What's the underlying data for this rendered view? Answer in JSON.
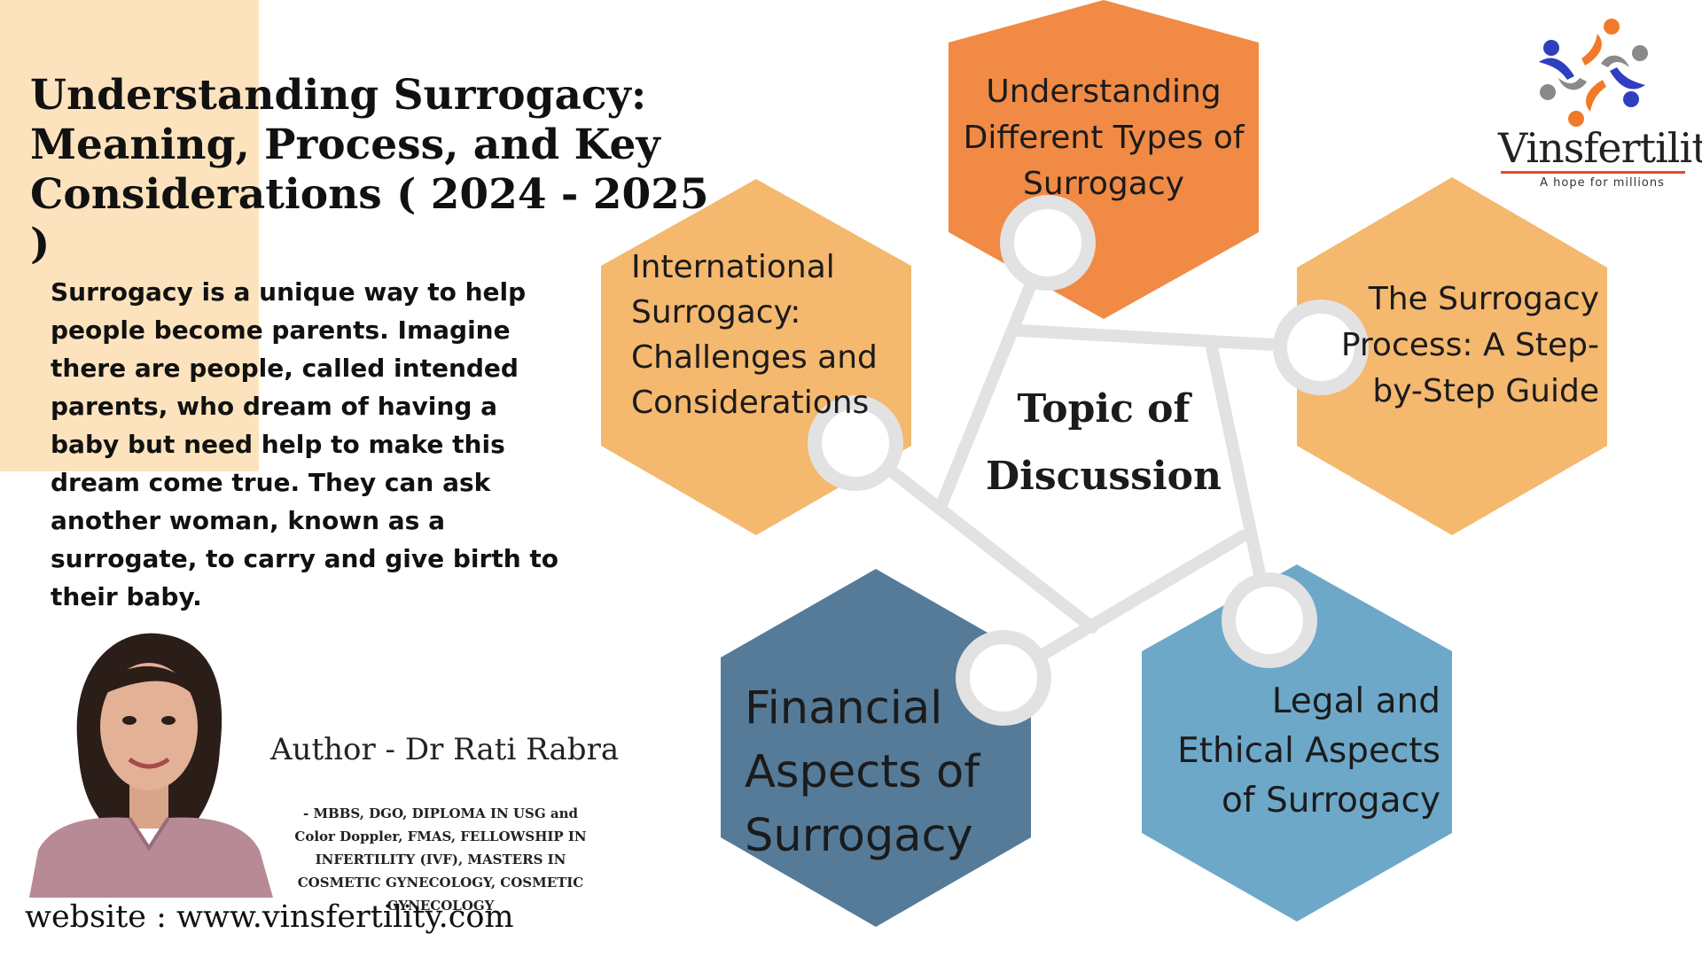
{
  "title": "Understanding Surrogacy: Meaning, Process, and Key Considerations ( 2024 - 2025 )",
  "intro": "Surrogacy is a unique way to help people become parents. Imagine there are people, called intended parents, who dream of having a baby but need help to make this dream come true. They can ask another woman, known as a surrogate, to carry and give birth to their baby.",
  "author": "Author - Dr Rati Rabra",
  "credentials": "- MBBS, DGO, DIPLOMA IN USG and Color Doppler, FMAS, FELLOWSHIP IN INFERTILITY (IVF), MASTERS IN COSMETIC GYNECOLOGY, COSMETIC GYNECOLOGY",
  "website": "website : www.vinsfertility.com",
  "brand": {
    "name": "Vinsfertility",
    "tagline": "A hope for millions"
  },
  "diagram": {
    "center": "Topic of Discussion",
    "topics": {
      "types": "Understanding Different Types of Surrogacy",
      "international": "International Surrogacy: Challenges and Considerations",
      "process": "The Surrogacy Process: A Step-by-Step Guide",
      "financial": "Financial Aspects of Surrogacy",
      "legal": "Legal and Ethical Aspects of Surrogacy"
    }
  },
  "colors": {
    "peach_band": "#fde3bd",
    "orange": "#f08a45",
    "light_orange": "#f4b86e",
    "steel_blue": "#557b99",
    "light_blue": "#6ea8c9",
    "connector": "#e2e2e2"
  }
}
